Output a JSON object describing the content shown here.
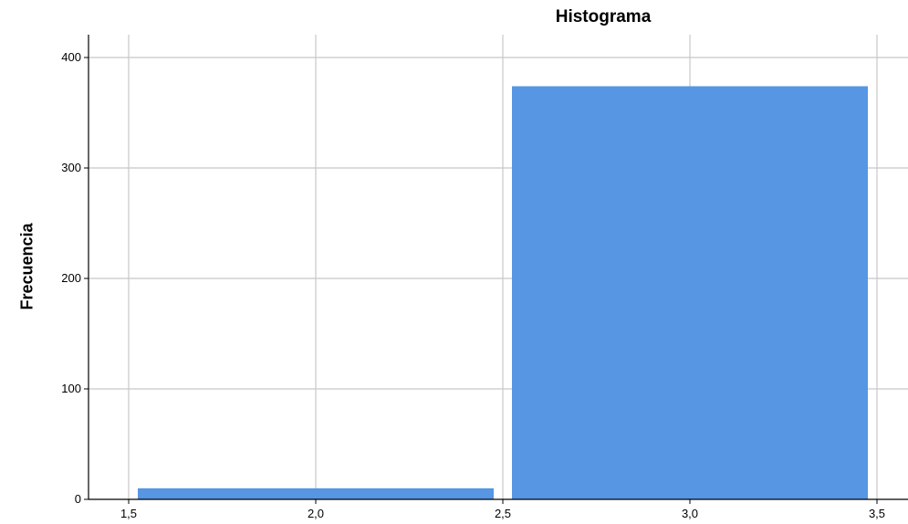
{
  "chart_data": {
    "type": "bar",
    "title": "Histograma",
    "xlabel": "",
    "ylabel": "Frecuencia",
    "bins": [
      {
        "start": 1.5,
        "end": 2.5,
        "value": 10
      },
      {
        "start": 2.5,
        "end": 3.5,
        "value": 374
      }
    ],
    "xlim": [
      1.5,
      3.5
    ],
    "ylim": [
      0,
      400
    ],
    "x_ticks": [
      "1,5",
      "2,0",
      "2,5",
      "3,0",
      "3,5"
    ],
    "y_ticks": [
      "0",
      "100",
      "200",
      "300",
      "400"
    ],
    "grid": true,
    "bar_color": "#5696E3"
  }
}
